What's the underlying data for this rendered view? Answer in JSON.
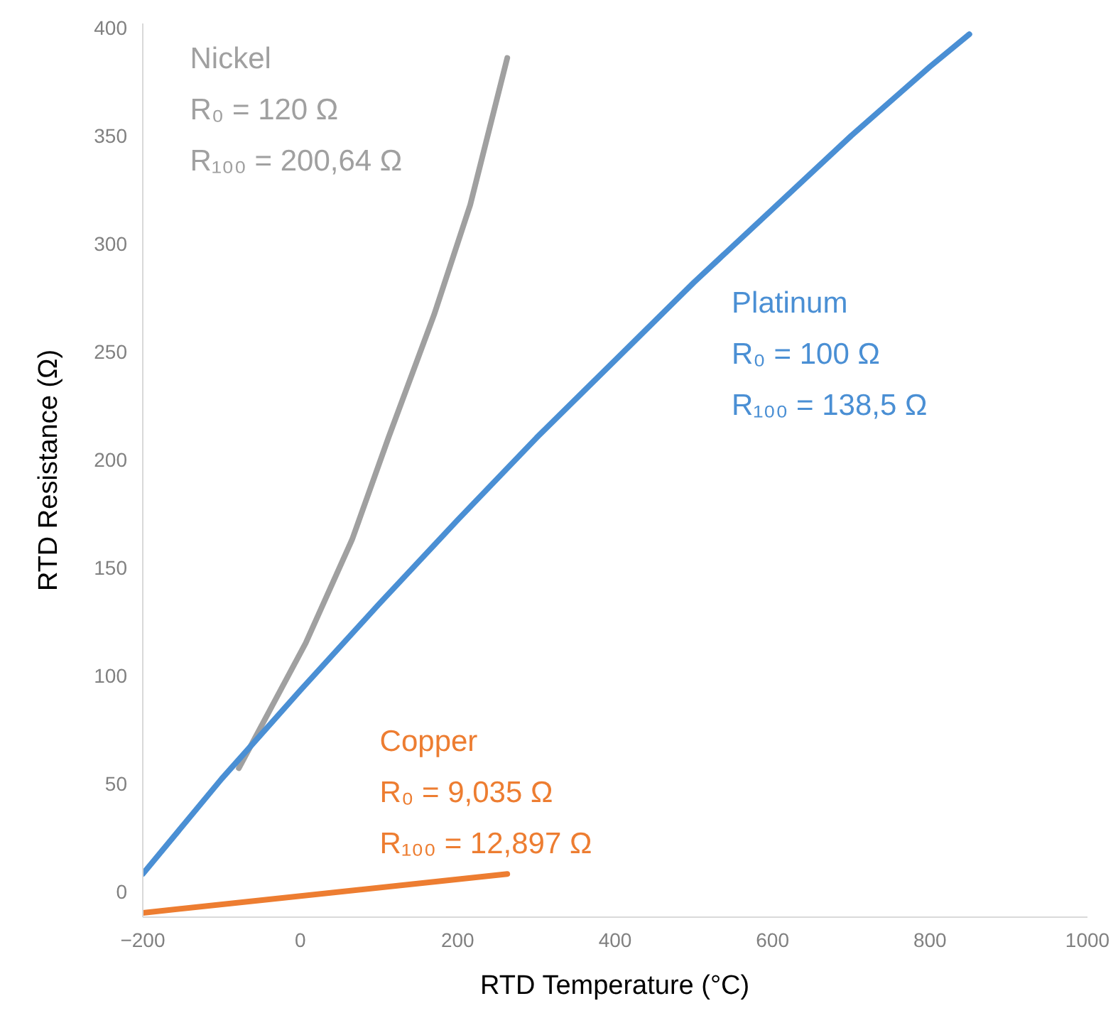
{
  "chart_data": {
    "type": "line",
    "xlabel": "RTD Temperature (°C)",
    "ylabel": "RTD Resistance (Ω)",
    "xlim": [
      -200,
      1000
    ],
    "xticks": [
      -200,
      0,
      200,
      400,
      600,
      800,
      1000
    ],
    "ylim": [
      -12,
      402
    ],
    "yticks": [
      0,
      50,
      100,
      150,
      200,
      250,
      300,
      350,
      400
    ],
    "grid": false,
    "marker": "none",
    "line_style": "solid",
    "series": [
      {
        "name": "Nickel",
        "color": "#a0a0a0",
        "x": [
          -78,
          7,
          66,
          112,
          170,
          216,
          263
        ],
        "values": [
          57,
          115,
          163,
          210,
          267,
          318,
          386
        ]
      },
      {
        "name": "Platinum",
        "color": "#4a8fd4",
        "x": [
          -200,
          -100,
          0,
          100,
          200,
          300,
          400,
          500,
          600,
          700,
          800,
          850
        ],
        "values": [
          8,
          52,
          93,
          133,
          172,
          210,
          246,
          282,
          316,
          350,
          382,
          397
        ]
      },
      {
        "name": "Copper",
        "color": "#ed7d31",
        "x": [
          -200,
          263
        ],
        "values": [
          -10,
          8
        ]
      }
    ],
    "annotations": [
      "R₀ = 120 Ω",
      "R₁₀₀ = 200,64 Ω",
      "R₀ = 100 Ω",
      "R₁₀₀ = 138,5 Ω",
      "R₀ = 9,035 Ω",
      "R₁₀₀ = 12,897 Ω"
    ]
  }
}
